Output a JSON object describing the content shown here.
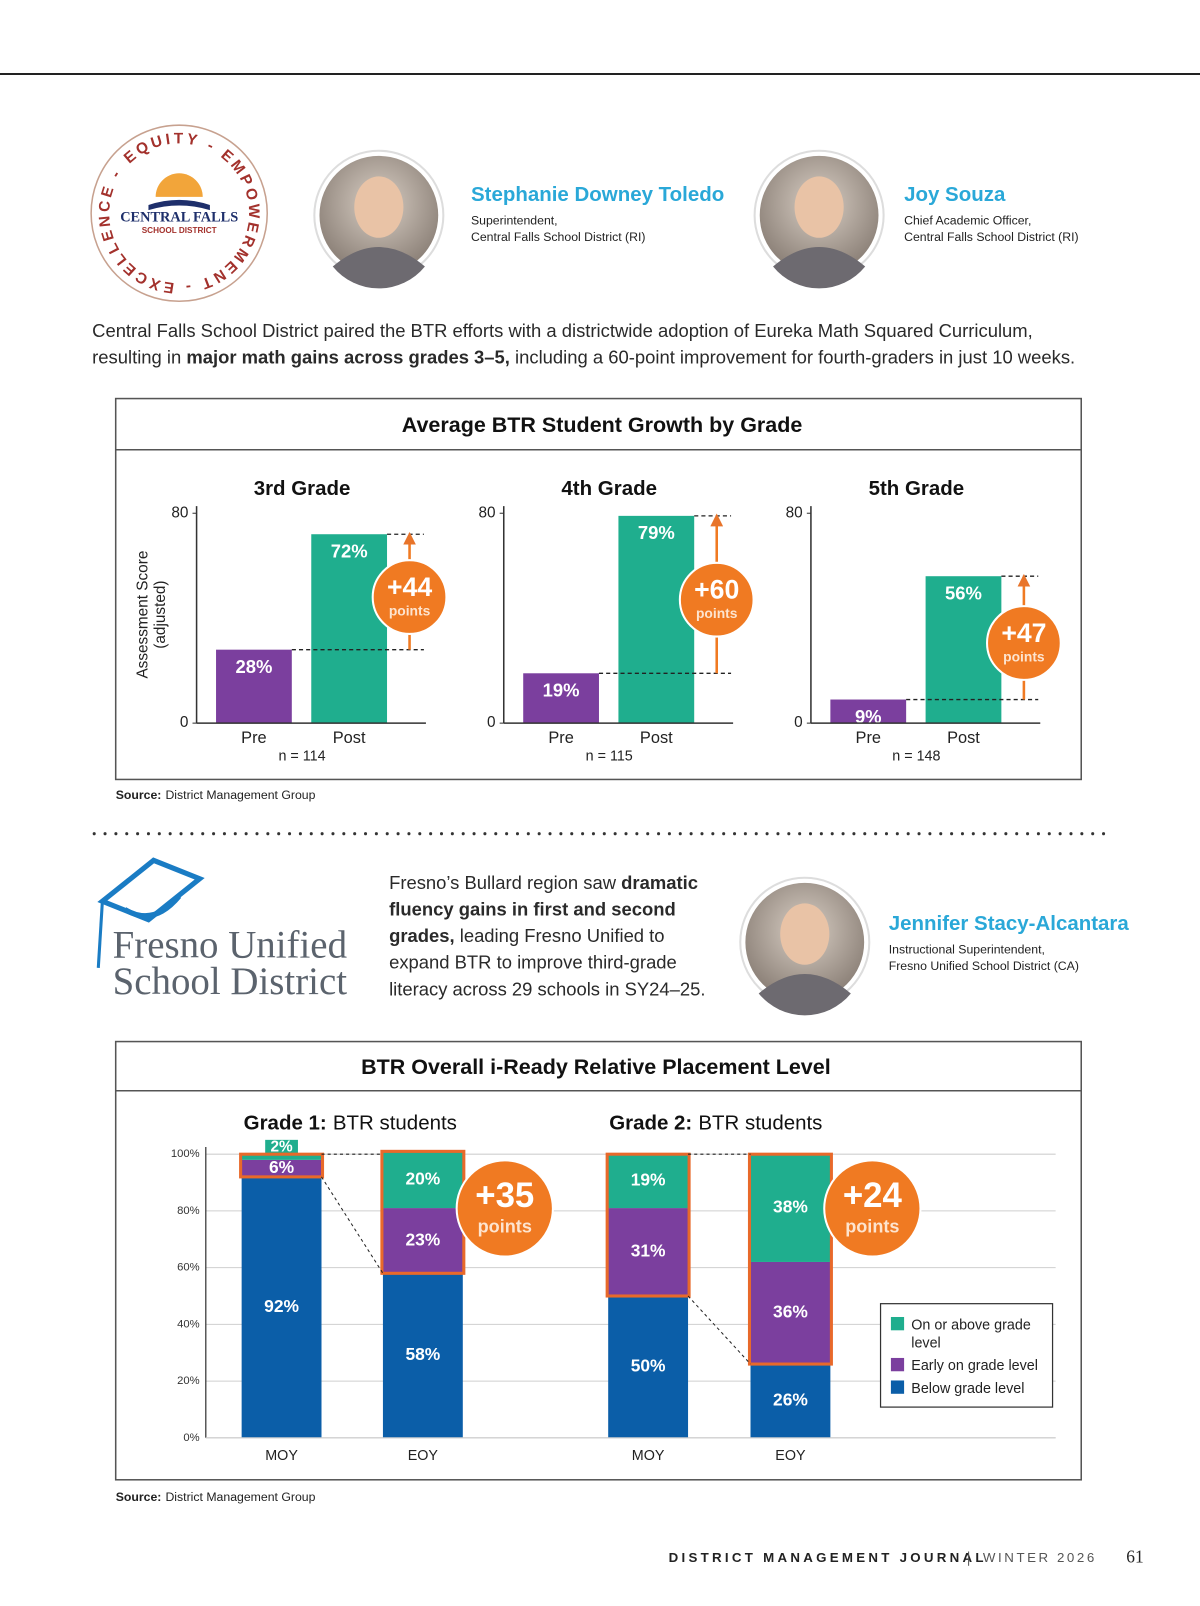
{
  "central_falls_logo": {
    "ring": "EQUITY - EMPOWERMENT - EXCELLENCE -",
    "name": "CENTRAL FALLS",
    "sub": "SCHOOL DISTRICT"
  },
  "people": [
    {
      "name": "Stephanie Downey Toledo",
      "role": [
        "Superintendent,",
        "Central Falls School District (RI)"
      ]
    },
    {
      "name": "Joy Souza",
      "role": [
        "Chief Academic Officer,",
        "Central Falls School District (RI)"
      ]
    },
    {
      "name": "Jennifer Stacy-Alcantara",
      "role": [
        "Instructional Superintendent,",
        "Fresno Unified School District (CA)"
      ]
    }
  ],
  "intro": [
    [
      {
        "text": "Central Falls School District paired the BTR efforts with a districtwide adoption of Eureka Math Squared Curriculum,",
        "bold": false
      }
    ],
    [
      {
        "text": "resulting in ",
        "bold": false
      },
      {
        "text": "major math gains across grades 3–5,",
        "bold": true
      },
      {
        "text": " including a 60-point improvement for fourth-graders in just 10 weeks.",
        "bold": false
      }
    ]
  ],
  "growth_box": {
    "title": "Average BTR Student Growth by Grade",
    "source_label": "Source:",
    "source": "District Management Group"
  },
  "fresno_logo": {
    "line1": "Fresno Unified",
    "line2": "School District"
  },
  "fresno_text": [
    [
      {
        "text": "Fresno’s Bullard region saw ",
        "bold": false
      },
      {
        "text": "dramatic",
        "bold": true
      }
    ],
    [
      {
        "text": "fluency gains in first and second",
        "bold": true
      }
    ],
    [
      {
        "text": "grades,",
        "bold": true
      },
      {
        "text": " leading Fresno Unified to",
        "bold": false
      }
    ],
    [
      {
        "text": "expand BTR to improve third-grade",
        "bold": false
      }
    ],
    [
      {
        "text": "literacy across 29 schools in SY24–25.",
        "bold": false
      }
    ]
  ],
  "placement_box": {
    "title": "BTR Overall i-Ready Relative Placement Level",
    "source_label": "Source:",
    "source": "District Management Group"
  },
  "chart_data": [
    {
      "type": "bar",
      "title": "3rd Grade",
      "ylabel": [
        "Assessment Score",
        "(adjusted)"
      ],
      "categories": [
        "Pre",
        "Post"
      ],
      "values": [
        28,
        72
      ],
      "value_labels": [
        "28%",
        "72%"
      ],
      "colors": [
        "#7b3f9e",
        "#1fae8e"
      ],
      "ylim": [
        0,
        80
      ],
      "yticks": [
        0,
        80
      ],
      "note": "n = 114",
      "annotation": "+44",
      "annotation_unit": "points"
    },
    {
      "type": "bar",
      "title": "4th Grade",
      "categories": [
        "Pre",
        "Post"
      ],
      "values": [
        19,
        79
      ],
      "value_labels": [
        "19%",
        "79%"
      ],
      "colors": [
        "#7b3f9e",
        "#1fae8e"
      ],
      "ylim": [
        0,
        80
      ],
      "yticks": [
        0,
        80
      ],
      "note": "n = 115",
      "annotation": "+60",
      "annotation_unit": "points"
    },
    {
      "type": "bar",
      "title": "5th Grade",
      "categories": [
        "Pre",
        "Post"
      ],
      "values": [
        9,
        56
      ],
      "value_labels": [
        "9%",
        "56%"
      ],
      "colors": [
        "#7b3f9e",
        "#1fae8e"
      ],
      "ylim": [
        0,
        80
      ],
      "yticks": [
        0,
        80
      ],
      "note": "n = 148",
      "annotation": "+47",
      "annotation_unit": "points"
    },
    {
      "type": "stacked_bar",
      "groups": [
        {
          "title": "Grade 1:",
          "subtitle": "BTR students"
        },
        {
          "title": "Grade 2:",
          "subtitle": "BTR students"
        }
      ],
      "categories": [
        "MOY",
        "EOY",
        "MOY",
        "EOY"
      ],
      "series": [
        {
          "name": "On or above grade level",
          "color": "#1fae8e",
          "values": [
            2,
            20,
            19,
            38
          ],
          "value_labels": [
            "2%",
            "20%",
            "19%",
            "38%"
          ]
        },
        {
          "name": "Early on grade level",
          "color": "#7b3f9e",
          "values": [
            6,
            23,
            31,
            36
          ],
          "value_labels": [
            "6%",
            "23%",
            "31%",
            "36%"
          ]
        },
        {
          "name": "Below grade level",
          "color": "#0b5ea8",
          "values": [
            92,
            58,
            50,
            26
          ],
          "value_labels": [
            "92%",
            "58%",
            "50%",
            "26%"
          ]
        }
      ],
      "ylim": [
        0,
        100
      ],
      "yticks": [
        {
          "value": 0,
          "label": "0%"
        },
        {
          "value": 20,
          "label": "20%"
        },
        {
          "value": 40,
          "label": "40%"
        },
        {
          "value": 60,
          "label": "60%"
        },
        {
          "value": 80,
          "label": "80%"
        },
        {
          "value": 100,
          "label": "100%"
        }
      ],
      "grid": true,
      "legend": "right",
      "annotations": [
        {
          "label": "+35",
          "unit": "points"
        },
        {
          "label": "+24",
          "unit": "points"
        }
      ]
    }
  ],
  "footer": {
    "journal": "DISTRICT MANAGEMENT JOURNAL",
    "issue": "WINTER 2026",
    "page": 61
  }
}
